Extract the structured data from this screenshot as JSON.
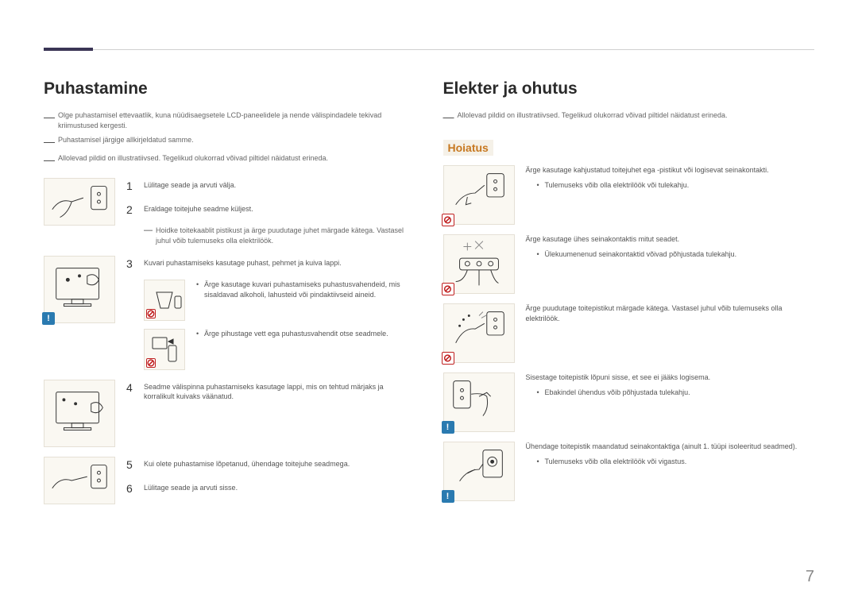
{
  "page_number": "7",
  "colors": {
    "header_marker": "#3a3555",
    "figure_bg": "#faf8f2",
    "figure_border": "#e5e0d5",
    "warn_bg": "#f5f1e8",
    "warn_text": "#c77820",
    "forbidden": "#c02020",
    "info": "#2a7ab0",
    "body_text": "#555",
    "note_text": "#666"
  },
  "left": {
    "title": "Puhastamine",
    "notes": [
      "Olge puhastamisel ettevaatlik, kuna nüüdisaegsetele LCD-paneelidele ja nende välispindadele tekivad kriimustused kergesti.",
      "Puhastamisel järgige allkirjeldatud samme.",
      "Allolevad pildid on illustratiivsed. Tegelikud olukorrad võivad piltidel näidatust erineda."
    ],
    "steps": [
      {
        "figure": {
          "icon": null
        },
        "items": [
          {
            "n": "1",
            "text": "Lülitage seade ja arvuti välja."
          },
          {
            "n": "2",
            "text": "Eraldage toitejuhe seadme küljest."
          }
        ],
        "subnote": "Hoidke toitekaablit pistikust ja ärge puudutage juhet märgade kätega. Vastasel juhul võib tulemuseks olla elektrilöök."
      },
      {
        "figure": {
          "icon": "info",
          "tall": true
        },
        "items": [
          {
            "n": "3",
            "text": "Kuvari puhastamiseks kasutage puhast, pehmet ja kuiva lappi."
          }
        ],
        "subfigures": [
          {
            "bullet": "Ärge kasutage kuvari puhastamiseks puhastusvahendeid, mis sisaldavad alkoholi, lahusteid või pindaktiivseid aineid."
          },
          {
            "bullet": "Ärge pihustage vett ega puhastusvahendit otse seadmele."
          }
        ]
      },
      {
        "figure": {
          "icon": null,
          "tall": true
        },
        "items": [
          {
            "n": "4",
            "text": "Seadme välispinna puhastamiseks kasutage lappi, mis on tehtud märjaks ja korralikult kuivaks väänatud."
          }
        ]
      },
      {
        "figure": {
          "icon": null
        },
        "items": [
          {
            "n": "5",
            "text": "Kui olete puhastamise lõpetanud, ühendage toitejuhe seadmega."
          },
          {
            "n": "6",
            "text": "Lülitage seade ja arvuti sisse."
          }
        ]
      }
    ]
  },
  "right": {
    "title": "Elekter ja ohutus",
    "notes": [
      "Allolevad pildid on illustratiivsed. Tegelikud olukorrad võivad piltidel näidatust erineda."
    ],
    "warning_label": "Hoiatus",
    "entries": [
      {
        "icon": "forbidden",
        "text": "Ärge kasutage kahjustatud toitejuhet ega -pistikut või logisevat seinakontakti.",
        "bullets": [
          "Tulemuseks võib olla elektrilöök või tulekahju."
        ]
      },
      {
        "icon": "forbidden",
        "text": "Ärge kasutage ühes seinakontaktis mitut seadet.",
        "bullets": [
          "Ülekuumenenud seinakontaktid võivad põhjustada tulekahju."
        ]
      },
      {
        "icon": "forbidden",
        "text": "Ärge puudutage toitepistikut märgade kätega. Vastasel juhul võib tulemuseks olla elektrilöök.",
        "bullets": []
      },
      {
        "icon": "info",
        "text": "Sisestage toitepistik lõpuni sisse, et see ei jääks logisema.",
        "bullets": [
          "Ebakindel ühendus võib põhjustada tulekahju."
        ]
      },
      {
        "icon": "info",
        "text": "Ühendage toitepistik maandatud seinakontaktiga (ainult 1. tüüpi isoleeritud seadmed).",
        "bullets": [
          "Tulemuseks võib olla elektrilöök või vigastus."
        ]
      }
    ]
  }
}
